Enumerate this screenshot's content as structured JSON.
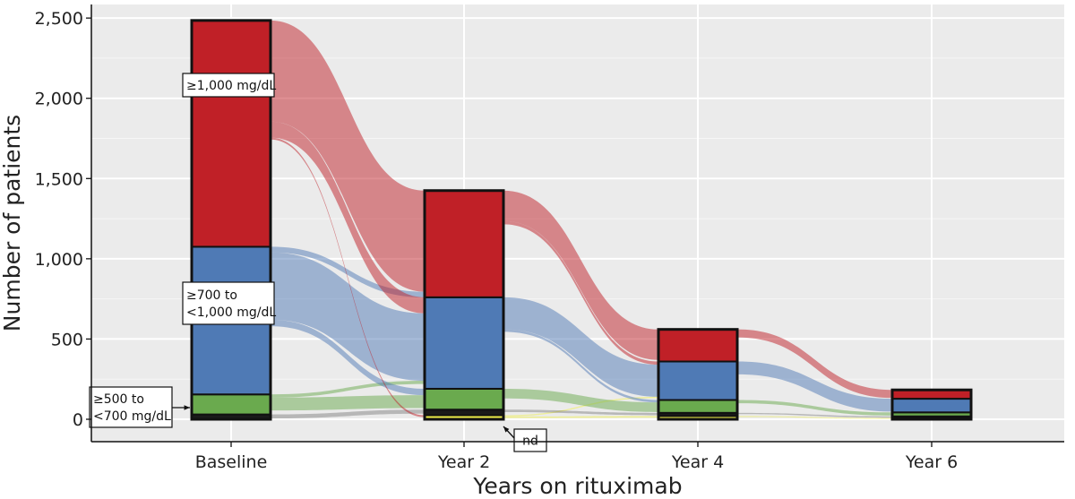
{
  "chart_data": {
    "type": "alluvial",
    "xlabel": "Years on rituximab",
    "ylabel": "Number of patients",
    "ylim": [
      0,
      2500
    ],
    "y_ticks": [
      0,
      500,
      1000,
      1500,
      2000,
      2500
    ],
    "y_tick_labels": [
      "0",
      "500",
      "1,000",
      "1,500",
      "2,000",
      "2,500"
    ],
    "grid": true,
    "categories": [
      "Baseline",
      "Year 2",
      "Year 4",
      "Year 6"
    ],
    "series": [
      {
        "key": "nd",
        "color": "#f2f24a",
        "values": [
          0,
          25,
          20,
          8
        ]
      },
      {
        "key": "lt500",
        "color": "#1a1a1a",
        "values": [
          30,
          35,
          20,
          10
        ]
      },
      {
        "key": "500to700",
        "color": "#6aaa4e",
        "values": [
          125,
          130,
          80,
          25
        ]
      },
      {
        "key": "700to1000",
        "color": "#4f7ab5",
        "values": [
          920,
          570,
          240,
          85
        ]
      },
      {
        "key": "ge1000",
        "color": "#c02027",
        "values": [
          1410,
          665,
          200,
          55
        ]
      }
    ],
    "flows": [
      {
        "from": [
          0,
          "ge1000"
        ],
        "to": [
          1,
          "ge1000"
        ],
        "value": 630
      },
      {
        "from": [
          0,
          "ge1000"
        ],
        "to": [
          1,
          "700to1000"
        ],
        "value": 100
      },
      {
        "from": [
          0,
          "ge1000"
        ],
        "to": [
          1,
          "nd"
        ],
        "value": 12
      },
      {
        "from": [
          0,
          "700to1000"
        ],
        "to": [
          1,
          "700to1000"
        ],
        "value": 420
      },
      {
        "from": [
          0,
          "700to1000"
        ],
        "to": [
          1,
          "ge1000"
        ],
        "value": 35
      },
      {
        "from": [
          0,
          "700to1000"
        ],
        "to": [
          1,
          "500to700"
        ],
        "value": 40
      },
      {
        "from": [
          0,
          "500to700"
        ],
        "to": [
          1,
          "500to700"
        ],
        "value": 80
      },
      {
        "from": [
          0,
          "500to700"
        ],
        "to": [
          1,
          "700to1000"
        ],
        "value": 20
      },
      {
        "from": [
          0,
          "lt500"
        ],
        "to": [
          1,
          "lt500"
        ],
        "value": 25
      },
      {
        "from": [
          1,
          "ge1000"
        ],
        "to": [
          2,
          "ge1000"
        ],
        "value": 190
      },
      {
        "from": [
          1,
          "ge1000"
        ],
        "to": [
          2,
          "700to1000"
        ],
        "value": 20
      },
      {
        "from": [
          1,
          "700to1000"
        ],
        "to": [
          2,
          "700to1000"
        ],
        "value": 200
      },
      {
        "from": [
          1,
          "700to1000"
        ],
        "to": [
          2,
          "500to700"
        ],
        "value": 15
      },
      {
        "from": [
          1,
          "500to700"
        ],
        "to": [
          2,
          "500to700"
        ],
        "value": 60
      },
      {
        "from": [
          1,
          "lt500"
        ],
        "to": [
          2,
          "lt500"
        ],
        "value": 15
      },
      {
        "from": [
          1,
          "nd"
        ],
        "to": [
          2,
          "700to1000"
        ],
        "value": 8
      },
      {
        "from": [
          1,
          "nd"
        ],
        "to": [
          2,
          "nd"
        ],
        "value": 10
      },
      {
        "from": [
          2,
          "ge1000"
        ],
        "to": [
          3,
          "ge1000"
        ],
        "value": 50
      },
      {
        "from": [
          2,
          "700to1000"
        ],
        "to": [
          3,
          "700to1000"
        ],
        "value": 80
      },
      {
        "from": [
          2,
          "500to700"
        ],
        "to": [
          3,
          "500to700"
        ],
        "value": 20
      },
      {
        "from": [
          2,
          "lt500"
        ],
        "to": [
          3,
          "lt500"
        ],
        "value": 8
      },
      {
        "from": [
          2,
          "nd"
        ],
        "to": [
          3,
          "nd"
        ],
        "value": 6
      }
    ],
    "annotations": [
      {
        "text_lines": [
          "≥1,000 mg/dL"
        ],
        "target": [
          0,
          "ge1000"
        ]
      },
      {
        "text_lines": [
          "≥700 to",
          "<1,000 mg/dL"
        ],
        "target": [
          0,
          "700to1000"
        ]
      },
      {
        "text_lines": [
          "≥500 to",
          "<700 mg/dL"
        ],
        "target": [
          0,
          "500to700"
        ]
      },
      {
        "text_lines": [
          "nd"
        ],
        "target": [
          1,
          "nd"
        ]
      }
    ]
  }
}
